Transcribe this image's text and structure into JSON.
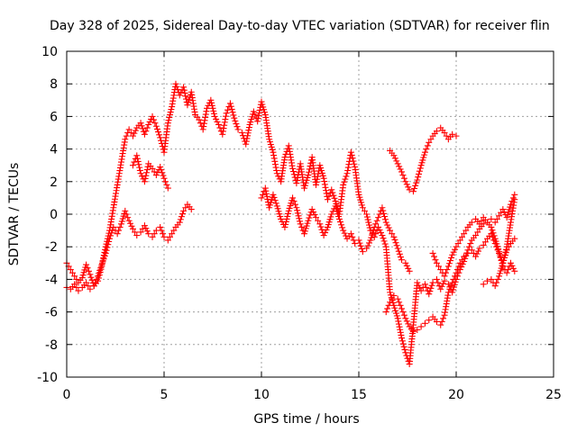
{
  "chart_data": {
    "type": "scatter",
    "title": "Day 328 of 2025, Sidereal Day-to-day VTEC variation (SDTVAR) for receiver flin",
    "xlabel": "GPS time / hours",
    "ylabel": "SDTVAR / TECUs",
    "xlim": [
      0,
      25
    ],
    "ylim": [
      -10,
      10
    ],
    "x_ticks": [
      0,
      5,
      10,
      15,
      20,
      25
    ],
    "y_ticks": [
      -10,
      -8,
      -6,
      -4,
      -2,
      0,
      2,
      4,
      6,
      8,
      10
    ],
    "grid": true,
    "marker": "plus",
    "colors": {
      "series": "#ff0000",
      "grid": "#a0a0a0",
      "axis": "#000000"
    },
    "series": [
      {
        "x": [
          0.0,
          0.2,
          0.4,
          0.6,
          0.8,
          1.0,
          1.2,
          1.4,
          1.6,
          1.8,
          2.0,
          2.2,
          2.4,
          2.6,
          2.8,
          3.0,
          3.2,
          3.4,
          3.6,
          3.8,
          4.0,
          4.2,
          4.4,
          4.6,
          4.8,
          5.0,
          5.2,
          5.4,
          5.6,
          5.8,
          6.0,
          6.2,
          6.4,
          6.6,
          6.8,
          7.0,
          7.2,
          7.4,
          7.6,
          7.8,
          8.0,
          8.2,
          8.4,
          8.6,
          8.8,
          9.0,
          9.2,
          9.4,
          9.6,
          9.8,
          10.0,
          10.2,
          10.4,
          10.6,
          10.8,
          11.0,
          11.2,
          11.4,
          11.6,
          11.8,
          12.0,
          12.2,
          12.4,
          12.6,
          12.8,
          13.0,
          13.2,
          13.4,
          13.6,
          13.8,
          14.0,
          14.2,
          14.4,
          14.6,
          14.8,
          15.0,
          15.2,
          15.4,
          15.6,
          15.8,
          16.0,
          16.2,
          16.4,
          16.6,
          16.8,
          17.0,
          17.2,
          17.4,
          17.6,
          17.8,
          18.0,
          18.2,
          18.4,
          18.6,
          18.8,
          19.0,
          19.2,
          19.4,
          19.6,
          19.8,
          20.0,
          20.2,
          20.4,
          20.6,
          20.8,
          21.0,
          21.2,
          21.4,
          21.6,
          21.8,
          22.0,
          22.2,
          22.4,
          22.6,
          22.8,
          23.0
        ],
        "y": [
          -3.0,
          -3.4,
          -3.8,
          -4.2,
          -3.9,
          -3.1,
          -3.7,
          -4.4,
          -4.1,
          -3.2,
          -2.0,
          -1.0,
          0.4,
          1.8,
          3.2,
          4.6,
          5.2,
          4.8,
          5.3,
          5.6,
          4.9,
          5.5,
          6.0,
          5.4,
          4.7,
          3.8,
          5.6,
          6.6,
          8.0,
          7.3,
          7.8,
          6.7,
          7.5,
          6.1,
          5.8,
          5.2,
          6.5,
          7.0,
          6.0,
          5.5,
          4.9,
          6.2,
          6.8,
          5.9,
          5.2,
          5.0,
          4.3,
          5.5,
          6.3,
          5.7,
          6.9,
          6.1,
          4.6,
          3.8,
          2.5,
          2.0,
          3.5,
          4.2,
          2.8,
          1.9,
          3.1,
          1.6,
          2.4,
          3.5,
          1.8,
          3.0,
          2.2,
          0.9,
          1.5,
          0.8,
          0.0,
          1.8,
          2.5,
          3.8,
          2.9,
          1.2,
          0.4,
          0.0,
          -1.0,
          -1.4,
          -0.8,
          -1.3,
          -2.0,
          -4.8,
          -5.6,
          -6.4,
          -7.6,
          -8.5,
          -9.2,
          -6.8,
          -4.2,
          -4.7,
          -4.3,
          -4.9,
          -4.2,
          -4.0,
          -4.6,
          -4.1,
          -4.3,
          -4.8,
          -4.0,
          -3.4,
          -2.9,
          -2.2,
          -1.6,
          -1.3,
          -0.9,
          -0.6,
          -0.5,
          -0.3,
          -0.5,
          -0.1,
          0.3,
          -0.2,
          0.6,
          1.2
        ]
      },
      {
        "x": [
          0.0,
          0.2,
          0.4,
          0.6,
          0.8,
          1.0,
          1.2,
          1.4,
          1.6,
          1.8,
          2.0,
          2.2,
          2.4,
          2.6,
          2.8,
          3.0,
          3.2,
          3.4,
          3.6,
          3.8,
          4.0,
          4.2,
          4.4,
          4.6,
          4.8,
          5.0,
          5.2,
          5.4,
          5.6,
          5.8,
          6.0,
          6.2,
          6.4
        ],
        "y": [
          -4.5,
          -4.6,
          -4.3,
          -4.7,
          -4.5,
          -4.2,
          -4.6,
          -4.4,
          -3.8,
          -3.1,
          -2.4,
          -1.5,
          -0.8,
          -1.2,
          -0.6,
          0.2,
          -0.4,
          -0.9,
          -1.3,
          -1.1,
          -0.7,
          -1.2,
          -1.4,
          -1.0,
          -0.8,
          -1.4,
          -1.6,
          -1.2,
          -0.8,
          -0.5,
          0.2,
          0.6,
          0.3
        ]
      },
      {
        "x": [
          3.4,
          3.6,
          3.8,
          4.0,
          4.2,
          4.4,
          4.6,
          4.8,
          5.0,
          5.2
        ],
        "y": [
          3.0,
          3.6,
          2.5,
          2.0,
          3.1,
          2.8,
          2.4,
          2.9,
          2.2,
          1.6
        ]
      },
      {
        "x": [
          10.0,
          10.2,
          10.4,
          10.6,
          10.8,
          11.0,
          11.2,
          11.4,
          11.6,
          11.8,
          12.0,
          12.2,
          12.4,
          12.6,
          12.8,
          13.0,
          13.2,
          13.4,
          13.6,
          13.8,
          14.0,
          14.2,
          14.4,
          14.6,
          14.8,
          15.0,
          15.2,
          15.4,
          15.6,
          15.8,
          16.0,
          16.2,
          16.4,
          16.6,
          16.8,
          17.0,
          17.2,
          17.4,
          17.6
        ],
        "y": [
          1.0,
          1.6,
          0.4,
          1.2,
          0.5,
          -0.3,
          -0.8,
          0.2,
          1.0,
          0.4,
          -0.6,
          -1.2,
          -0.4,
          0.3,
          -0.2,
          -0.6,
          -1.3,
          -0.8,
          0.0,
          0.5,
          -0.3,
          -1.0,
          -1.5,
          -1.2,
          -1.8,
          -1.6,
          -2.3,
          -2.1,
          -1.6,
          -0.8,
          -0.2,
          0.4,
          -0.5,
          -1.0,
          -1.4,
          -2.1,
          -2.8,
          -3.0,
          -3.5
        ]
      },
      {
        "x": [
          16.6,
          16.8,
          17.0,
          17.2,
          17.4,
          17.6,
          17.8,
          18.0,
          18.2,
          18.4,
          18.6,
          18.8,
          19.0,
          19.2,
          19.4,
          19.6,
          19.8,
          20.0
        ],
        "y": [
          3.9,
          3.6,
          3.1,
          2.6,
          2.0,
          1.5,
          1.4,
          2.1,
          3.0,
          3.8,
          4.4,
          4.8,
          5.1,
          5.3,
          5.0,
          4.6,
          4.9,
          4.8
        ]
      },
      {
        "x": [
          16.4,
          16.6,
          16.8,
          17.0,
          17.2,
          17.4,
          17.6,
          17.8,
          18.0,
          18.2,
          18.4,
          18.6,
          18.8,
          19.0,
          19.2,
          19.4,
          19.6,
          19.8,
          20.0,
          20.2,
          20.4,
          20.6,
          20.8,
          21.0,
          21.2,
          21.4,
          21.6,
          21.8,
          22.0,
          22.2,
          22.4,
          22.6,
          22.8,
          23.0
        ],
        "y": [
          -6.0,
          -5.4,
          -5.0,
          -5.2,
          -5.8,
          -6.4,
          -6.9,
          -7.2,
          -7.1,
          -6.9,
          -6.7,
          -6.5,
          -6.3,
          -6.6,
          -6.8,
          -6.2,
          -4.8,
          -4.2,
          -3.6,
          -3.0,
          -2.6,
          -2.4,
          -2.2,
          -2.6,
          -2.1,
          -1.9,
          -1.5,
          -1.2,
          -1.8,
          -2.4,
          -3.0,
          -2.2,
          -1.8,
          -1.5
        ]
      },
      {
        "x": [
          18.8,
          19.0,
          19.2,
          19.4,
          19.6,
          19.8,
          20.0,
          20.2,
          20.4,
          20.6,
          20.8,
          21.0,
          21.2,
          21.4,
          21.6,
          21.8,
          22.0,
          22.2,
          22.4,
          22.6,
          22.8,
          23.0
        ],
        "y": [
          -2.4,
          -3.0,
          -3.4,
          -3.8,
          -3.2,
          -2.5,
          -2.0,
          -1.6,
          -1.2,
          -0.8,
          -0.5,
          -0.3,
          -0.6,
          -0.2,
          -0.5,
          -0.8,
          -1.5,
          -2.3,
          -3.2,
          -3.6,
          -3.0,
          -3.5
        ]
      },
      {
        "x": [
          21.4,
          21.6,
          21.8,
          22.0,
          22.2,
          22.4,
          22.6,
          22.8,
          23.0
        ],
        "y": [
          -4.3,
          -4.1,
          -4.0,
          -4.4,
          -3.8,
          -3.0,
          -2.0,
          -0.5,
          0.9
        ]
      }
    ]
  }
}
